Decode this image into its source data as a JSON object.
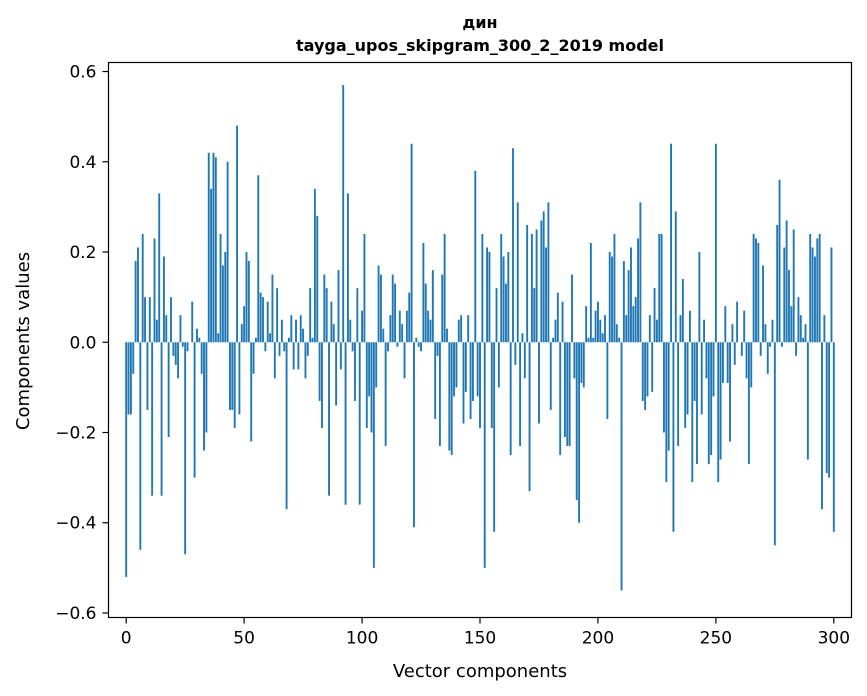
{
  "chart_data": {
    "type": "bar",
    "title_line1": "дин",
    "title_line2": "tayga_upos_skipgram_300_2_2019 model",
    "xlabel": "Vector components",
    "ylabel": "Components values",
    "xlim": [
      -7.5,
      307.5
    ],
    "ylim": [
      -0.61,
      0.62
    ],
    "xticks": [
      0,
      50,
      100,
      150,
      200,
      250,
      300
    ],
    "xtick_labels": [
      "0",
      "50",
      "100",
      "150",
      "200",
      "250",
      "300"
    ],
    "yticks": [
      -0.6,
      -0.4,
      -0.2,
      0.0,
      0.2,
      0.4,
      0.6
    ],
    "ytick_labels": [
      "−0.6",
      "−0.4",
      "−0.2",
      "0.0",
      "0.2",
      "0.4",
      "0.6"
    ],
    "bar_color": "#1f77b4",
    "grid": false,
    "values": [
      -0.52,
      -0.16,
      -0.16,
      -0.07,
      0.18,
      0.21,
      -0.46,
      0.24,
      0.1,
      -0.15,
      0.1,
      -0.34,
      0.23,
      0.05,
      0.33,
      -0.34,
      0.19,
      0.06,
      -0.21,
      0.1,
      -0.03,
      -0.05,
      -0.08,
      0.06,
      -0.01,
      -0.47,
      -0.02,
      0.0,
      0.09,
      -0.3,
      0.03,
      0.01,
      -0.07,
      -0.24,
      -0.2,
      0.42,
      0.34,
      0.42,
      0.41,
      0.02,
      0.24,
      0.17,
      0.2,
      0.4,
      -0.15,
      -0.15,
      -0.19,
      0.48,
      -0.16,
      0.04,
      0.08,
      0.2,
      0.18,
      -0.22,
      -0.07,
      0.01,
      0.37,
      0.11,
      0.1,
      -0.02,
      0.09,
      0.02,
      0.15,
      -0.08,
      0.12,
      -0.03,
      0.05,
      -0.02,
      -0.37,
      0.01,
      0.06,
      -0.06,
      0.05,
      -0.06,
      0.06,
      0.03,
      -0.08,
      -0.03,
      0.12,
      0.01,
      0.34,
      0.28,
      -0.13,
      -0.19,
      0.15,
      0.12,
      -0.34,
      0.09,
      0.04,
      -0.14,
      0.16,
      -0.06,
      0.57,
      -0.36,
      0.33,
      0.05,
      -0.02,
      -0.13,
      0.12,
      -0.36,
      0.07,
      0.24,
      -0.19,
      -0.12,
      -0.2,
      -0.5,
      -0.1,
      0.17,
      0.15,
      0.03,
      -0.23,
      -0.02,
      0.06,
      0.15,
      0.13,
      -0.01,
      0.07,
      0.04,
      -0.08,
      0.07,
      0.11,
      0.44,
      -0.41,
      0.01,
      -0.01,
      -0.02,
      0.22,
      0.13,
      0.07,
      0.05,
      0.16,
      -0.17,
      -0.03,
      -0.23,
      0.15,
      0.24,
      0.03,
      -0.24,
      -0.25,
      -0.12,
      -0.1,
      0.05,
      0.06,
      -0.18,
      -0.11,
      0.06,
      -0.17,
      -0.13,
      0.38,
      -0.12,
      -0.19,
      0.24,
      -0.5,
      0.21,
      0.2,
      -0.19,
      -0.42,
      0.12,
      -0.1,
      0.24,
      0.19,
      0.13,
      0.2,
      -0.25,
      0.43,
      -0.05,
      0.31,
      -0.23,
      0.02,
      -0.08,
      0.26,
      -0.33,
      0.24,
      0.12,
      0.25,
      -0.18,
      0.27,
      0.29,
      0.21,
      0.31,
      -0.15,
      0.01,
      0.05,
      0.11,
      -0.25,
      0.09,
      -0.21,
      -0.23,
      -0.23,
      0.15,
      -0.08,
      -0.35,
      -0.4,
      -0.09,
      -0.1,
      0.08,
      0.01,
      0.22,
      0.01,
      0.07,
      0.09,
      0.05,
      0.02,
      0.06,
      -0.17,
      0.2,
      0.19,
      0.24,
      0.04,
      0.01,
      -0.55,
      0.18,
      0.06,
      0.16,
      0.21,
      0.08,
      0.1,
      0.23,
      0.31,
      -0.13,
      -0.15,
      -0.12,
      0.06,
      -0.11,
      0.12,
      0.05,
      0.24,
      0.24,
      -0.2,
      -0.31,
      -0.24,
      0.44,
      -0.42,
      0.29,
      -0.23,
      0.06,
      0.14,
      -0.19,
      -0.16,
      0.07,
      -0.31,
      -0.13,
      -0.27,
      0.2,
      -0.16,
      0.05,
      -0.08,
      -0.27,
      -0.25,
      -0.12,
      0.44,
      -0.31,
      -0.26,
      -0.09,
      0.08,
      -0.09,
      -0.22,
      0.04,
      -0.05,
      0.09,
      0.0,
      -0.03,
      0.07,
      -0.08,
      -0.27,
      -0.1,
      0.24,
      0.23,
      0.22,
      -0.03,
      0.17,
      0.04,
      -0.07,
      -0.01,
      0.05,
      -0.45,
      0.26,
      0.36,
      -0.01,
      0.21,
      0.27,
      0.16,
      0.08,
      0.25,
      -0.03,
      0.1,
      0.06,
      0.01,
      0.04,
      -0.26,
      0.24,
      0.21,
      0.19,
      0.23,
      0.24,
      -0.37,
      0.06,
      -0.29,
      -0.3,
      0.21,
      -0.42
    ]
  }
}
